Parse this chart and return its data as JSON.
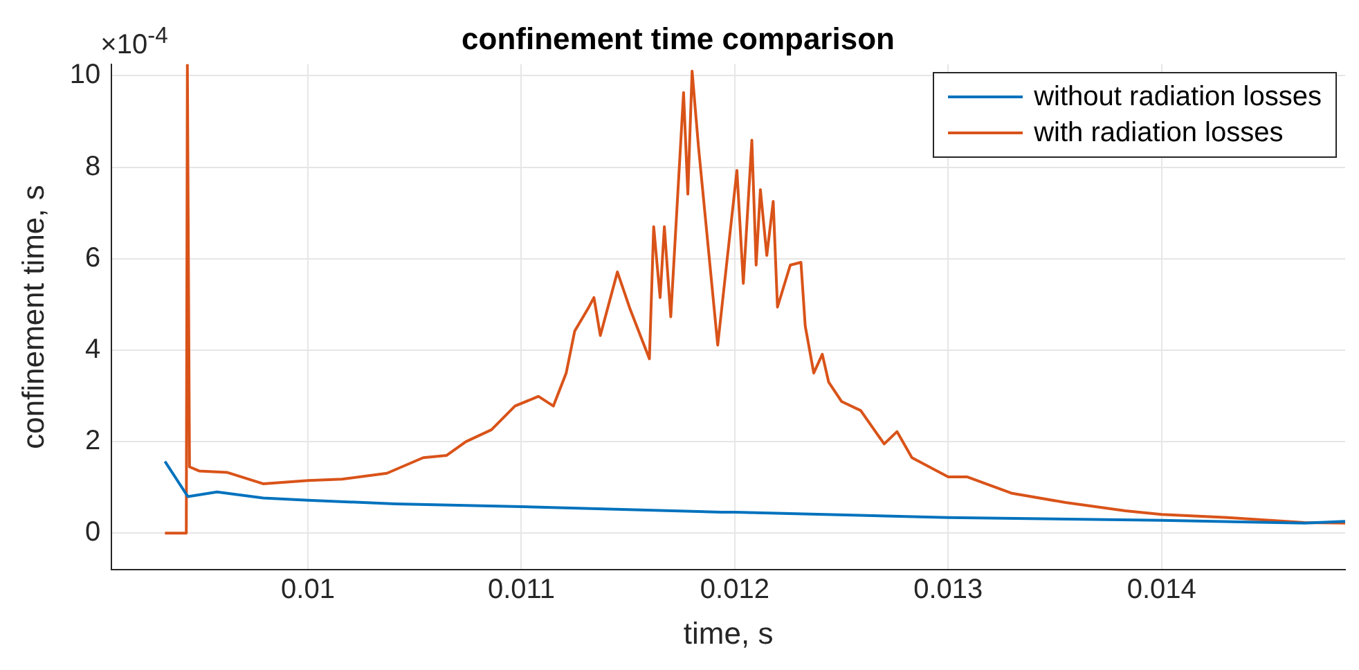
{
  "chart_data": {
    "type": "line",
    "title": "confinement time comparison",
    "xlabel": "time, s",
    "ylabel": "confinement time, s",
    "annotations": [
      "×10$^{-4}$"
    ],
    "xlim": [
      0.00908,
      0.01486
    ],
    "xticks": [
      0.01,
      0.011,
      0.012,
      0.013,
      0.014
    ],
    "ylim": [
      -0.8,
      10.25
    ],
    "yticks": [
      0,
      2,
      4,
      6,
      8,
      10
    ],
    "grid": true,
    "legend": "top right",
    "marker": "none",
    "line_style": "solid",
    "series": [
      {
        "name": "without radiation losses",
        "color": "#0072bd",
        "x": [
          0.00933,
          0.009437,
          0.009574,
          0.00979,
          0.01,
          0.01041,
          0.011,
          0.01194,
          0.012,
          0.013,
          0.014,
          0.01467,
          0.01486
        ],
        "values": [
          1.57,
          0.8,
          0.9,
          0.77,
          0.72,
          0.64,
          0.58,
          0.46,
          0.46,
          0.34,
          0.28,
          0.22,
          0.26
        ]
      },
      {
        "name": "with radiation losses",
        "color": "#d95319",
        "x": [
          0.00933,
          0.00943,
          0.009435,
          0.009445,
          0.00949,
          0.00962,
          0.00979,
          0.01,
          0.01016,
          0.01037,
          0.01054,
          0.01065,
          0.01074,
          0.01086,
          0.01097,
          0.01108,
          0.01115,
          0.01121,
          0.01125,
          0.01131,
          0.01134,
          0.01137,
          0.01145,
          0.01151,
          0.0116,
          0.01162,
          0.01165,
          0.01167,
          0.0117,
          0.01176,
          0.01178,
          0.0118,
          0.01183,
          0.01192,
          0.01201,
          0.01204,
          0.01208,
          0.0121,
          0.01212,
          0.01215,
          0.01218,
          0.0122,
          0.01226,
          0.01231,
          0.01233,
          0.01237,
          0.01241,
          0.01244,
          0.0125,
          0.01259,
          0.0127,
          0.01276,
          0.01283,
          0.013,
          0.01309,
          0.0133,
          0.01355,
          0.01383,
          0.014,
          0.01431,
          0.01467,
          0.01486
        ],
        "values": [
          0,
          0,
          10.25,
          1.45,
          1.36,
          1.33,
          1.08,
          1.15,
          1.18,
          1.31,
          1.65,
          1.7,
          2.0,
          2.26,
          2.78,
          2.99,
          2.78,
          3.5,
          4.42,
          4.89,
          5.15,
          4.32,
          5.71,
          4.89,
          3.81,
          6.7,
          5.15,
          6.7,
          4.73,
          9.63,
          7.41,
          10.1,
          8.44,
          4.11,
          7.93,
          5.46,
          8.59,
          5.86,
          7.51,
          6.07,
          7.25,
          4.94,
          5.86,
          5.92,
          4.53,
          3.5,
          3.91,
          3.3,
          2.88,
          2.68,
          1.95,
          2.22,
          1.65,
          1.23,
          1.23,
          0.87,
          0.67,
          0.49,
          0.41,
          0.34,
          0.23,
          0.22
        ]
      }
    ]
  }
}
